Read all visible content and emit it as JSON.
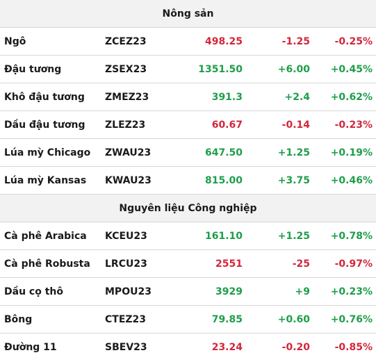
{
  "colors": {
    "up": "#1e9e4a",
    "down": "#d3263b",
    "header_bg": "#f2f2f2",
    "divider": "#d6d6d6"
  },
  "sections": [
    {
      "title": "Nông sản",
      "rows": [
        {
          "name": "Ngô",
          "code": "ZCEZ23",
          "price": "498.25",
          "change": "-1.25",
          "pct": "-0.25%",
          "dir": "down"
        },
        {
          "name": "Đậu tương",
          "code": "ZSEX23",
          "price": "1351.50",
          "change": "+6.00",
          "pct": "+0.45%",
          "dir": "up"
        },
        {
          "name": "Khô đậu tương",
          "code": "ZMEZ23",
          "price": "391.3",
          "change": "+2.4",
          "pct": "+0.62%",
          "dir": "up"
        },
        {
          "name": "Dầu đậu tương",
          "code": "ZLEZ23",
          "price": "60.67",
          "change": "-0.14",
          "pct": "-0.23%",
          "dir": "down"
        },
        {
          "name": "Lúa mỳ Chicago",
          "code": "ZWAU23",
          "price": "647.50",
          "change": "+1.25",
          "pct": "+0.19%",
          "dir": "up"
        },
        {
          "name": "Lúa mỳ Kansas",
          "code": "KWAU23",
          "price": "815.00",
          "change": "+3.75",
          "pct": "+0.46%",
          "dir": "up"
        }
      ]
    },
    {
      "title": "Nguyên liệu Công nghiệp",
      "rows": [
        {
          "name": "Cà phê Arabica",
          "code": "KCEU23",
          "price": "161.10",
          "change": "+1.25",
          "pct": "+0.78%",
          "dir": "up"
        },
        {
          "name": "Cà phê Robusta",
          "code": "LRCU23",
          "price": "2551",
          "change": "-25",
          "pct": "-0.97%",
          "dir": "down"
        },
        {
          "name": "Dầu cọ thô",
          "code": "MPOU23",
          "price": "3929",
          "change": "+9",
          "pct": "+0.23%",
          "dir": "up"
        },
        {
          "name": "Bông",
          "code": "CTEZ23",
          "price": "79.85",
          "change": "+0.60",
          "pct": "+0.76%",
          "dir": "up"
        },
        {
          "name": "Đường 11",
          "code": "SBEV23",
          "price": "23.24",
          "change": "-0.20",
          "pct": "-0.85%",
          "dir": "down"
        }
      ]
    }
  ]
}
